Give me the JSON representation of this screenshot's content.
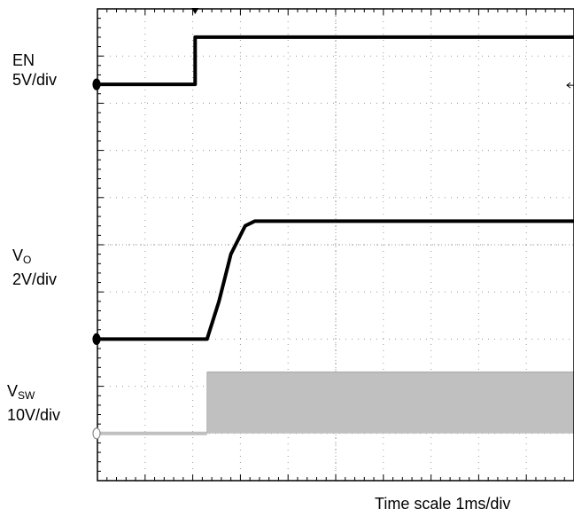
{
  "channel_labels": {
    "en": {
      "name": "EN",
      "scale": "5V/div"
    },
    "vo": {
      "name": "V",
      "sub": "O",
      "scale": "2V/div"
    },
    "vsw": {
      "name": "V",
      "sub": "SW",
      "scale": "10V/div"
    }
  },
  "footer": {
    "time_scale": "Time  scale  1ms/div"
  },
  "chart_data": {
    "type": "line",
    "title": "",
    "xlabel": "Time  scale  1ms/div",
    "x_unit": "ms",
    "xlim": [
      0,
      10
    ],
    "y_unit": "div",
    "ylim": [
      0,
      10
    ],
    "grid": true,
    "series": [
      {
        "name": "EN",
        "scale": "5V/div",
        "color": "#000000",
        "ground_div": 8.4,
        "x": [
          0,
          2.05,
          2.05,
          10
        ],
        "y": [
          8.4,
          8.4,
          9.4,
          9.4
        ]
      },
      {
        "name": "VO",
        "scale": "2V/div",
        "color": "#000000",
        "ground_div": 3.0,
        "x": [
          0,
          2.3,
          2.55,
          2.8,
          3.1,
          3.3,
          10
        ],
        "y": [
          3.0,
          3.0,
          3.8,
          4.8,
          5.4,
          5.5,
          5.5
        ]
      },
      {
        "name": "VSW",
        "scale": "10V/div",
        "color": "#c0c0c0",
        "ground_div": 1.0,
        "x": [
          0,
          2.3,
          2.3,
          10
        ],
        "y": [
          1.0,
          1.0,
          2.3,
          2.3
        ]
      }
    ]
  }
}
